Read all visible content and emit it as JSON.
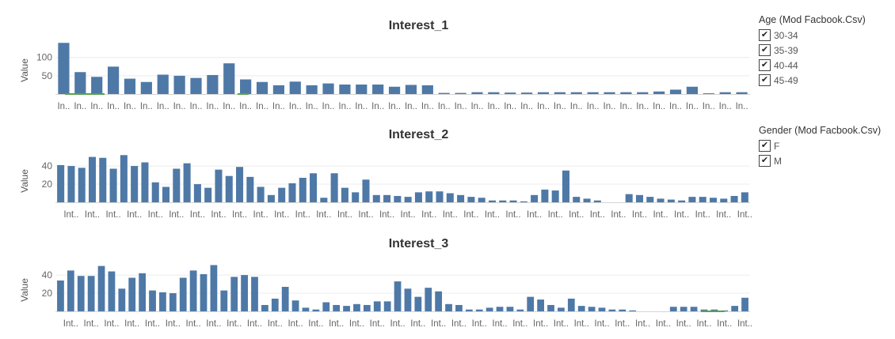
{
  "chart_data": [
    {
      "type": "bar",
      "title": "Interest_1",
      "ylabel": "Value",
      "yticks": [
        50,
        100
      ],
      "ylim": [
        0,
        147
      ],
      "xtick_label": "In..",
      "values": [
        140,
        60,
        47,
        75,
        42,
        33,
        53,
        50,
        44,
        52,
        84,
        40,
        33,
        24,
        34,
        24,
        29,
        26,
        26,
        26,
        20,
        25,
        24,
        3,
        3,
        5,
        5,
        4,
        4,
        5,
        5,
        5,
        5,
        5,
        5,
        5,
        7,
        12,
        20,
        2,
        5,
        5
      ]
    },
    {
      "type": "bar",
      "title": "Interest_2",
      "ylabel": "Value",
      "yticks": [
        20,
        40
      ],
      "ylim": [
        0,
        54
      ],
      "xtick_label": "Int..",
      "values": [
        41,
        40,
        38,
        50,
        49,
        37,
        52,
        40,
        44,
        22,
        17,
        37,
        43,
        20,
        16,
        36,
        29,
        39,
        28,
        17,
        8,
        16,
        21,
        27,
        32,
        5,
        32,
        16,
        11,
        25,
        8,
        8,
        7,
        6,
        11,
        12,
        12,
        10,
        8,
        6,
        5,
        2,
        2,
        2,
        1,
        8,
        14,
        13,
        35,
        6,
        4,
        2,
        0,
        0,
        9,
        8,
        6,
        4,
        3,
        2,
        6,
        6,
        5,
        4,
        7,
        11
      ]
    },
    {
      "type": "bar",
      "title": "Interest_3",
      "ylabel": "Value",
      "yticks": [
        20,
        40
      ],
      "ylim": [
        0,
        54
      ],
      "xtick_label": "Int..",
      "values": [
        34,
        45,
        39,
        39,
        50,
        44,
        25,
        37,
        42,
        23,
        21,
        20,
        37,
        45,
        41,
        51,
        23,
        38,
        40,
        38,
        7,
        14,
        27,
        12,
        4,
        2,
        10,
        7,
        6,
        8,
        7,
        11,
        11,
        33,
        25,
        16,
        26,
        22,
        8,
        7,
        2,
        2,
        4,
        5,
        5,
        2,
        16,
        13,
        7,
        4,
        14,
        6,
        5,
        4,
        2,
        2,
        1,
        0,
        0,
        0,
        5,
        5,
        5,
        2,
        2,
        1,
        6,
        15
      ]
    }
  ],
  "legends": [
    {
      "title": "Age (Mod Facbook.Csv)",
      "items": [
        "30-34",
        "35-39",
        "40-44",
        "45-49"
      ]
    },
    {
      "title": "Gender (Mod Facbook.Csv)",
      "items": [
        "F",
        "M"
      ]
    }
  ],
  "colors": {
    "bar": "#4E79A7",
    "accent_green": "#59A14F",
    "accent_red": "#E15759",
    "grid": "#ececec",
    "baseline": "#d4d4d4"
  },
  "checkmark": "✔"
}
